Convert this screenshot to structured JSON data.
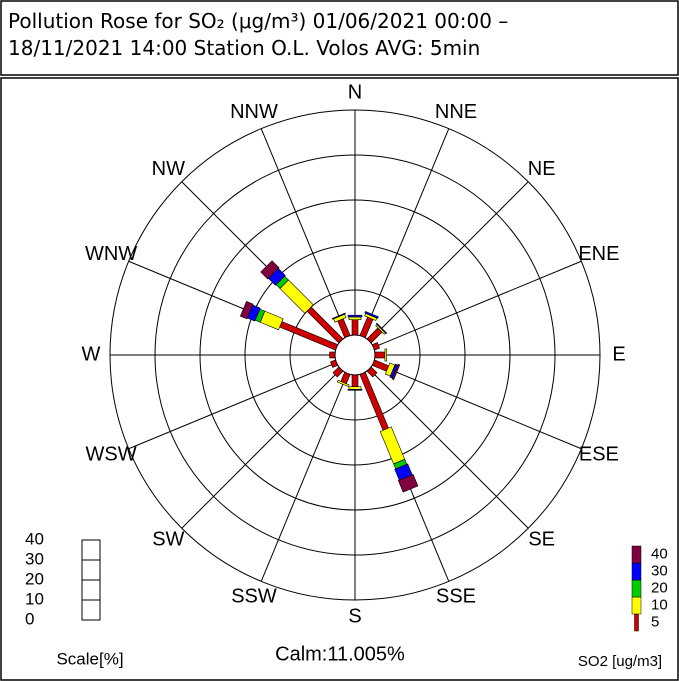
{
  "chart_data": {
    "type": "rose",
    "title": "Pollution Rose for SO₂ (μg/m³) 01/06/2021 00:00 – 18/11/2021 14:00 Station O.L. Volos AVG: 5min",
    "categories": [
      "N",
      "NNE",
      "NE",
      "ENE",
      "E",
      "ESE",
      "SE",
      "SSE",
      "S",
      "SSW",
      "SW",
      "WSW",
      "W",
      "WNW",
      "NW",
      "NNW"
    ],
    "series": [
      {
        "name": "5",
        "color": "#cc0000",
        "values": [
          1.7,
          2.2,
          1.7,
          0.6,
          1.1,
          1.7,
          0.9,
          6.7,
          1.3,
          1.1,
          0.9,
          0.6,
          0.6,
          6.7,
          5.0,
          2.0
        ]
      },
      {
        "name": "10",
        "color": "#ffff00",
        "values": [
          0.3,
          0.3,
          0.2,
          0,
          0.2,
          0.6,
          0,
          3.9,
          0.3,
          0.2,
          0,
          0,
          0,
          2.2,
          3.9,
          0.4
        ]
      },
      {
        "name": "20",
        "color": "#00cc00",
        "values": [
          0,
          0,
          0,
          0,
          0,
          0,
          0,
          0.6,
          0,
          0,
          0,
          0,
          0,
          0.6,
          0.6,
          0
        ]
      },
      {
        "name": "30",
        "color": "#0000ff",
        "values": [
          0.2,
          0.2,
          0.1,
          0,
          0,
          0.3,
          0,
          1.3,
          0.1,
          0,
          0,
          0,
          0,
          0.9,
          1.1,
          0.1
        ]
      },
      {
        "name": "40",
        "color": "#800040",
        "values": [
          0,
          0,
          0,
          0,
          0,
          0.2,
          0,
          1.4,
          0,
          0,
          0,
          0,
          0,
          0.8,
          1.1,
          0
        ]
      }
    ],
    "rlim": [
      0,
      25
    ],
    "rgrid": [
      5,
      10,
      15,
      20,
      25
    ],
    "calm_label": "Calm:11.005%",
    "scale_label": "Scale[%]",
    "scale_ticks": [
      0,
      10,
      20,
      30,
      40
    ],
    "legend_title": "SO2 [ug/m3]"
  }
}
